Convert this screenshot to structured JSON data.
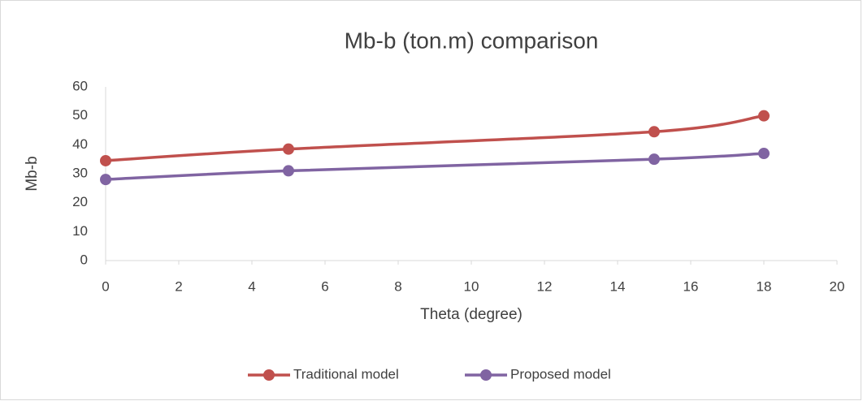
{
  "chart_data": {
    "type": "line",
    "title": "Mb-b (ton.m) comparison",
    "x_label": "Theta (degree)",
    "y_label": "Mb-b",
    "x": [
      0,
      5,
      15,
      18
    ],
    "series": [
      {
        "name": "Traditional model",
        "color": "#c0504d",
        "values": [
          34.5,
          38.5,
          44.5,
          50
        ]
      },
      {
        "name": "Proposed model",
        "color": "#8064a2",
        "values": [
          28,
          31,
          35,
          37
        ]
      }
    ],
    "xlim": [
      0,
      20
    ],
    "xticks": [
      0,
      2,
      4,
      6,
      8,
      10,
      12,
      14,
      16,
      18,
      20
    ],
    "ylim": [
      0,
      60
    ],
    "yticks": [
      0,
      10,
      20,
      30,
      40,
      50,
      60
    ],
    "grid": false,
    "smooth": true,
    "legend": "bottom"
  }
}
